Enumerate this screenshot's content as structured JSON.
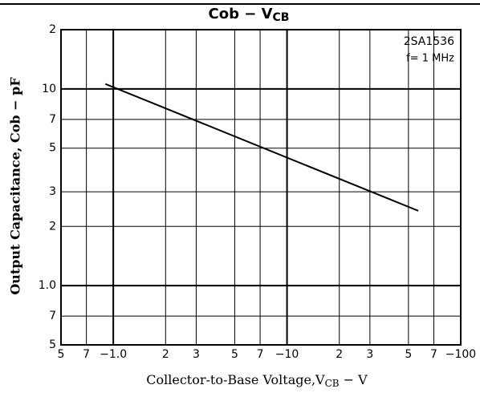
{
  "chart_data": {
    "type": "line",
    "title": "Cob − V",
    "title_subscript": "CB",
    "x_label": "Collector-to-Base Voltage,V",
    "x_label_subscript": "CB",
    "x_label_unit": " − V",
    "y_label": "Output Capacitance, Cob − pF",
    "annotations": [
      "2SA1536",
      "f= 1 MHz"
    ],
    "log_x": true,
    "log_y": true,
    "grid": true,
    "xlim": [
      0.5,
      100
    ],
    "xticks": [
      {
        "value": 0.5,
        "label": "5"
      },
      {
        "value": 0.7,
        "label": "7"
      },
      {
        "value": 1,
        "label": "−1.0"
      },
      2,
      3,
      5,
      7,
      {
        "value": 10,
        "label": "−10"
      },
      {
        "value": 20,
        "label": "2"
      },
      {
        "value": 30,
        "label": "3"
      },
      {
        "value": 50,
        "label": "5"
      },
      {
        "value": 70,
        "label": "7"
      },
      {
        "value": 100,
        "label": "−100"
      }
    ],
    "ylim": [
      0.5,
      20
    ],
    "yticks": [
      {
        "value": 20,
        "label": "2"
      },
      10,
      7,
      5,
      3,
      2,
      {
        "value": 1,
        "label": "1.0"
      },
      {
        "value": 0.7,
        "label": "7"
      },
      {
        "value": 0.5,
        "label": "5"
      }
    ],
    "x": [
      0.9,
      57
    ],
    "series": [
      {
        "name": "2SA1536",
        "color": "#000000",
        "values": [
          10.6,
          2.4
        ]
      }
    ]
  }
}
